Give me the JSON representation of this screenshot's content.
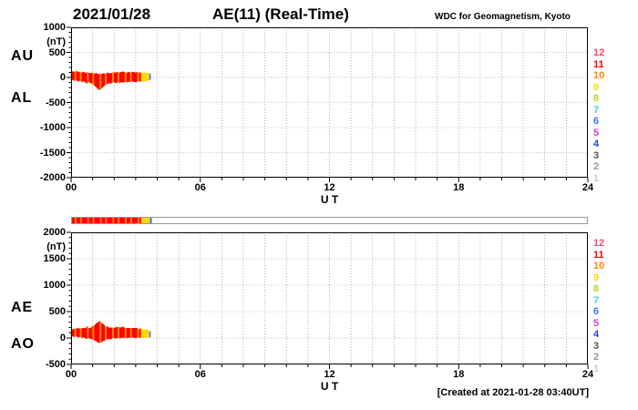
{
  "header": {
    "date": "2021/01/28",
    "title": "AE(11) (Real-Time)",
    "source": "WDC for Geomagnetism, Kyoto"
  },
  "footer": {
    "created": "[Created at 2021-01-28 03:40UT]"
  },
  "station_scale": {
    "labels": [
      "12",
      "11",
      "10",
      "9",
      "8",
      "7",
      "6",
      "5",
      "4",
      "3",
      "2",
      "1"
    ],
    "colors": [
      "#ff4466",
      "#ff0000",
      "#ff8800",
      "#ffd700",
      "#aadd22",
      "#44ccee",
      "#3377ff",
      "#cc44cc",
      "#2244dd",
      "#555555",
      "#999999",
      "#cccccc"
    ]
  },
  "chart_data": [
    {
      "type": "area",
      "name": "AU-AL",
      "left_labels": [
        "AU",
        "AL"
      ],
      "ylabel": "(nT)",
      "ylim": [
        -2000,
        1000
      ],
      "yticks": [
        1000,
        500,
        0,
        -500,
        -1000,
        -1500,
        -2000
      ],
      "xlim": [
        0,
        24
      ],
      "xticks": [
        0,
        6,
        12,
        18,
        24
      ],
      "xtick_labels": [
        "00",
        "06",
        "12",
        "18",
        "24"
      ],
      "xlabel": "U T",
      "grid": "dotted",
      "x": [
        0,
        0.083,
        0.167,
        0.25,
        0.333,
        0.417,
        0.5,
        0.583,
        0.667,
        0.75,
        0.833,
        0.917,
        1,
        1.083,
        1.167,
        1.25,
        1.333,
        1.417,
        1.5,
        1.583,
        1.667,
        1.75,
        1.833,
        1.917,
        2,
        2.083,
        2.167,
        2.25,
        2.333,
        2.417,
        2.5,
        2.583,
        2.667,
        2.75,
        2.833,
        2.917,
        3,
        3.083,
        3.167,
        3.25,
        3.333,
        3.417,
        3.5,
        3.583,
        3.667
      ],
      "series": [
        {
          "name": "AU",
          "values": [
            90,
            120,
            105,
            130,
            100,
            115,
            95,
            110,
            85,
            100,
            90,
            80,
            95,
            70,
            85,
            60,
            75,
            65,
            80,
            70,
            90,
            85,
            75,
            95,
            100,
            90,
            110,
            95,
            105,
            115,
            100,
            90,
            105,
            95,
            110,
            100,
            95,
            105,
            90,
            100,
            85,
            95,
            80,
            90,
            75
          ]
        },
        {
          "name": "AL",
          "values": [
            -60,
            -40,
            -70,
            -50,
            -80,
            -60,
            -90,
            -70,
            -100,
            -120,
            -90,
            -110,
            -130,
            -160,
            -190,
            -230,
            -250,
            -220,
            -180,
            -150,
            -130,
            -110,
            -120,
            -100,
            -90,
            -110,
            -95,
            -105,
            -90,
            -100,
            -85,
            -95,
            -80,
            -90,
            -75,
            -85,
            -90,
            -80,
            -70,
            -85,
            -75,
            -65,
            -70,
            -60,
            -50
          ]
        }
      ],
      "stations": [
        11,
        11,
        10,
        11,
        11,
        10,
        11,
        11,
        11,
        10,
        11,
        11,
        10,
        11,
        11,
        11,
        10,
        11,
        11,
        10,
        11,
        11,
        11,
        10,
        11,
        11,
        10,
        11,
        11,
        11,
        10,
        11,
        11,
        10,
        11,
        11,
        11,
        10,
        11,
        9,
        9,
        9,
        9,
        9,
        6
      ]
    },
    {
      "type": "area",
      "name": "AE-AO",
      "left_labels": [
        "AE",
        "AO"
      ],
      "ylabel": "(nT)",
      "ylim": [
        -500,
        2000
      ],
      "yticks": [
        2000,
        1500,
        1000,
        500,
        0,
        -500
      ],
      "xlim": [
        0,
        24
      ],
      "xticks": [
        0,
        6,
        12,
        18,
        24
      ],
      "xtick_labels": [
        "00",
        "06",
        "12",
        "18",
        "24"
      ],
      "xlabel": "U T",
      "grid": "dotted",
      "x": [
        0,
        0.083,
        0.167,
        0.25,
        0.333,
        0.417,
        0.5,
        0.583,
        0.667,
        0.75,
        0.833,
        0.917,
        1,
        1.083,
        1.167,
        1.25,
        1.333,
        1.417,
        1.5,
        1.583,
        1.667,
        1.75,
        1.833,
        1.917,
        2,
        2.083,
        2.167,
        2.25,
        2.333,
        2.417,
        2.5,
        2.583,
        2.667,
        2.75,
        2.833,
        2.917,
        3,
        3.083,
        3.167,
        3.25,
        3.333,
        3.417,
        3.5,
        3.583,
        3.667
      ],
      "series": [
        {
          "name": "AE",
          "values": [
            150,
            160,
            175,
            180,
            180,
            175,
            185,
            180,
            185,
            220,
            180,
            190,
            225,
            230,
            275,
            290,
            325,
            285,
            260,
            220,
            220,
            195,
            195,
            195,
            190,
            200,
            205,
            200,
            195,
            215,
            185,
            185,
            185,
            185,
            185,
            185,
            185,
            185,
            160,
            185,
            160,
            160,
            150,
            150,
            125
          ]
        },
        {
          "name": "AO",
          "values": [
            15,
            40,
            18,
            40,
            10,
            28,
            3,
            20,
            -8,
            -10,
            0,
            -15,
            -18,
            -45,
            -53,
            -85,
            -88,
            -78,
            -50,
            -40,
            -20,
            -13,
            -23,
            -3,
            5,
            -10,
            8,
            -5,
            8,
            8,
            8,
            -3,
            13,
            3,
            18,
            8,
            3,
            13,
            10,
            8,
            5,
            15,
            5,
            15,
            13
          ]
        }
      ],
      "stations": [
        11,
        11,
        10,
        11,
        11,
        10,
        11,
        11,
        11,
        10,
        11,
        11,
        10,
        11,
        11,
        11,
        10,
        11,
        11,
        10,
        11,
        11,
        11,
        10,
        11,
        11,
        10,
        11,
        11,
        11,
        10,
        11,
        11,
        10,
        11,
        11,
        11,
        10,
        11,
        9,
        9,
        9,
        9,
        9,
        6
      ]
    }
  ]
}
